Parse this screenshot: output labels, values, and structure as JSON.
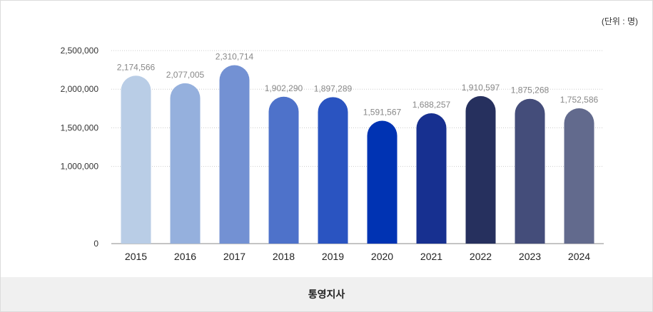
{
  "unit_label": "(단위 : 명)",
  "footer_label": "통영지사",
  "colors": {
    "bars": [
      "#b9cde6",
      "#95b0dd",
      "#7391d3",
      "#4e72ca",
      "#2a54c1",
      "#0033b3",
      "#173090",
      "#26305e",
      "#444d7a",
      "#626a8d"
    ],
    "grid": "#cccccc",
    "axis": "#888888"
  },
  "chart_data": {
    "type": "bar",
    "categories": [
      "2015",
      "2016",
      "2017",
      "2018",
      "2019",
      "2020",
      "2021",
      "2022",
      "2023",
      "2024"
    ],
    "values": [
      2174566,
      2077005,
      2310714,
      1902290,
      1897289,
      1591567,
      1688257,
      1910597,
      1875268,
      1752586
    ],
    "value_labels": [
      "2,174,566",
      "2,077,005",
      "2,310,714",
      "1,902,290",
      "1,897,289",
      "1,591,567",
      "1,688,257",
      "1,910,597",
      "1,875,268",
      "1,752,586"
    ],
    "yticks": [
      0,
      1000000,
      1500000,
      2000000,
      2500000
    ],
    "ytick_labels": [
      "0",
      "1,000,000",
      "1,500,000",
      "2,000,000",
      "2,500,000"
    ],
    "ylim": [
      0,
      2500000
    ],
    "grid": true,
    "title": "",
    "xlabel": "",
    "ylabel": ""
  }
}
